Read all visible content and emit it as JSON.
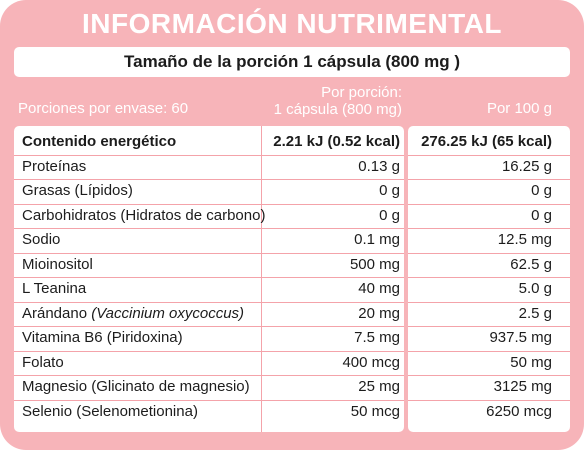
{
  "title": "INFORMACIÓN NUTRIMENTAL",
  "serving_size": "Tamaño de la porción 1 cápsula (800 mg )",
  "header": {
    "servings_per_container": "Porciones por envase: 60",
    "per_serving_line1": "Por porción:",
    "per_serving_line2": "1 cápsula (800 mg)",
    "per_100g": "Por 100 g"
  },
  "rows": [
    {
      "name": "Contenido energético",
      "per_serving": "2.21 kJ (0.52 kcal)",
      "per_100g": "276.25 kJ (65 kcal)"
    },
    {
      "name": "Proteínas",
      "per_serving": "0.13 g",
      "per_100g": "16.25 g"
    },
    {
      "name": "Grasas (Lípidos)",
      "per_serving": "0 g",
      "per_100g": "0 g"
    },
    {
      "name": "Carbohidratos (Hidratos de carbono)",
      "per_serving": "0 g",
      "per_100g": "0 g"
    },
    {
      "name": "Sodio",
      "per_serving": "0.1 mg",
      "per_100g": "12.5 mg"
    },
    {
      "name": "Mioinositol",
      "per_serving": "500 mg",
      "per_100g": "62.5 g"
    },
    {
      "name": "L Teanina",
      "per_serving": "40 mg",
      "per_100g": "5.0 g"
    },
    {
      "name": "Arándano",
      "name_italic": "(Vaccinium oxycoccus)",
      "per_serving": "20 mg",
      "per_100g": "2.5 g"
    },
    {
      "name": "Vitamina B6 (Piridoxina)",
      "per_serving": "7.5 mg",
      "per_100g": "937.5 mg"
    },
    {
      "name": "Folato",
      "per_serving": "400 mcg",
      "per_100g": "50 mg"
    },
    {
      "name": "Magnesio (Glicinato de magnesio)",
      "per_serving": "25 mg",
      "per_100g": "3125 mg"
    },
    {
      "name": "Selenio (Selenometionina)",
      "per_serving": "50 mcg",
      "per_100g": "6250 mcg"
    }
  ],
  "colors": {
    "background": "#f7b4b9",
    "panel": "#ffffff",
    "text": "#1c1c1c",
    "divider": "#f4a3aa"
  }
}
